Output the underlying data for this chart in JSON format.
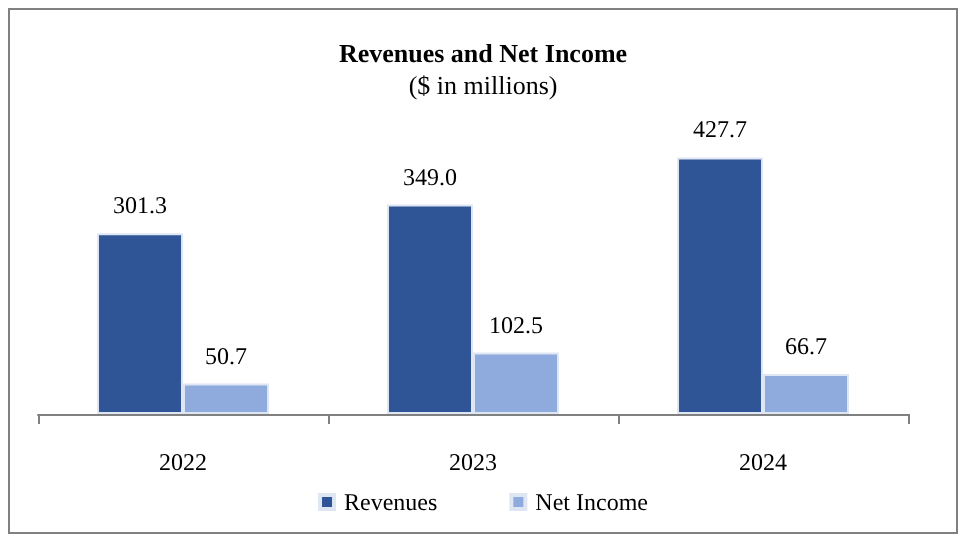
{
  "chart_data": {
    "type": "bar",
    "title": "Revenues and Net Income",
    "subtitle": "($ in millions)",
    "categories": [
      "2022",
      "2023",
      "2024"
    ],
    "series": [
      {
        "name": "Revenues",
        "color": "#2f5597",
        "values": [
          301.3,
          349.0,
          427.7
        ],
        "value_labels": [
          "301.3",
          "349.0",
          "427.7"
        ]
      },
      {
        "name": "Net Income",
        "color": "#8faadc",
        "values": [
          50.7,
          102.5,
          66.7
        ],
        "value_labels": [
          "50.7",
          "102.5",
          "66.7"
        ]
      }
    ],
    "legend": "bottom"
  }
}
